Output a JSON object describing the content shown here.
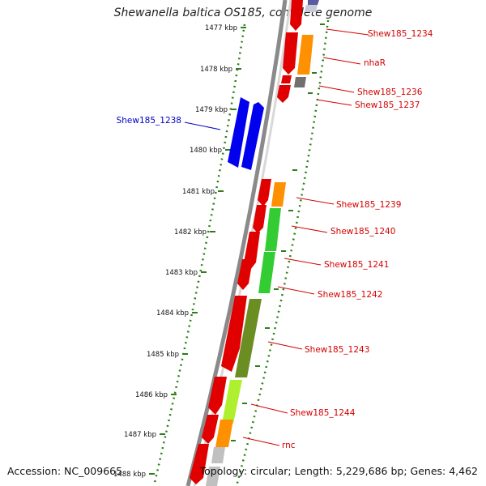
{
  "title": "Shewanella baltica OS185, complete genome",
  "footer": {
    "accession": "Accession: NC_009665",
    "summary": "Topology: circular; Length: 5,229,686 bp; Genes: 4,462"
  },
  "colors": {
    "backbone": "#8a8a8a",
    "tick": "#2e7d1a",
    "label_red": "#d40000",
    "label_blue": "#0000c8"
  },
  "kbp_ticks": [
    "1477 kbp",
    "1478 kbp",
    "1479 kbp",
    "1480 kbp",
    "1481 kbp",
    "1482 kbp",
    "1483 kbp",
    "1484 kbp",
    "1485 kbp",
    "1486 kbp",
    "1487 kbp",
    "1488 kbp"
  ],
  "gene_labels": [
    {
      "text": "Shew185_1234",
      "color": "#d40000"
    },
    {
      "text": "nhaR",
      "color": "#d40000"
    },
    {
      "text": "Shew185_1236",
      "color": "#d40000"
    },
    {
      "text": "Shew185_1237",
      "color": "#d40000"
    },
    {
      "text": "Shew185_1238",
      "color": "#0000c8"
    },
    {
      "text": "Shew185_1239",
      "color": "#d40000"
    },
    {
      "text": "Shew185_1240",
      "color": "#d40000"
    },
    {
      "text": "Shew185_1241",
      "color": "#d40000"
    },
    {
      "text": "Shew185_1242",
      "color": "#d40000"
    },
    {
      "text": "Shew185_1243",
      "color": "#d40000"
    },
    {
      "text": "Shew185_1244",
      "color": "#d40000"
    },
    {
      "text": "rnc",
      "color": "#d40000"
    }
  ]
}
